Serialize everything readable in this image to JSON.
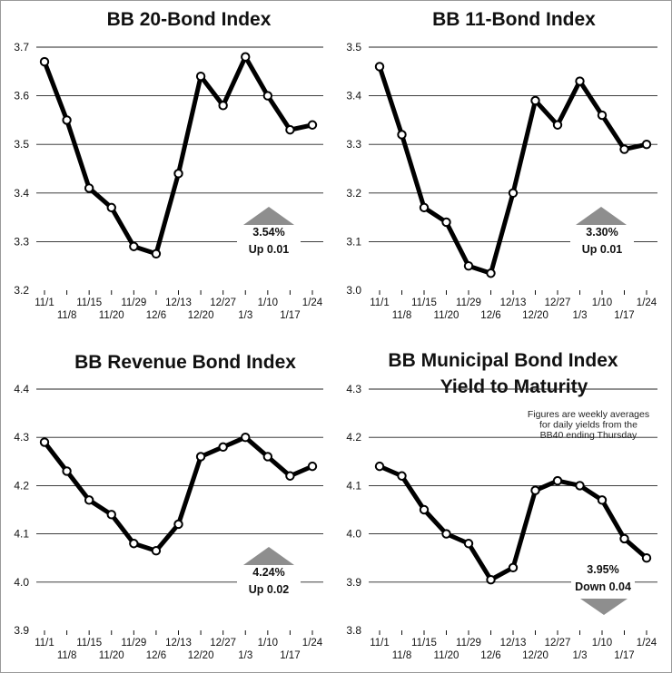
{
  "chart_data": [
    {
      "id": "bb20",
      "type": "line",
      "title": "BB 20-Bond Index",
      "title2": "",
      "ylim": [
        3.2,
        3.7
      ],
      "yticks": [
        "3.7",
        "3.6",
        "3.5",
        "3.4",
        "3.3",
        "3.2"
      ],
      "categories": [
        "11/1",
        "11/8",
        "11/15",
        "11/20",
        "11/29",
        "12/6",
        "12/13",
        "12/20",
        "12/27",
        "1/3",
        "1/10",
        "1/17",
        "1/24"
      ],
      "values": [
        3.67,
        3.55,
        3.41,
        3.37,
        3.29,
        3.275,
        3.44,
        3.64,
        3.58,
        3.68,
        3.6,
        3.53,
        3.54
      ],
      "callout": {
        "value": "3.54%",
        "change": "Up 0.01",
        "direction": "up"
      },
      "note": []
    },
    {
      "id": "bb11",
      "type": "line",
      "title": "BB 11-Bond Index",
      "title2": "",
      "ylim": [
        3.0,
        3.5
      ],
      "yticks": [
        "3.5",
        "3.4",
        "3.3",
        "3.2",
        "3.1",
        "3.0"
      ],
      "categories": [
        "11/1",
        "11/8",
        "11/15",
        "11/20",
        "11/29",
        "12/6",
        "12/13",
        "12/20",
        "12/27",
        "1/3",
        "1/10",
        "1/17",
        "1/24"
      ],
      "values": [
        3.46,
        3.32,
        3.17,
        3.14,
        3.05,
        3.035,
        3.2,
        3.39,
        3.34,
        3.43,
        3.36,
        3.29,
        3.3
      ],
      "callout": {
        "value": "3.30%",
        "change": "Up 0.01",
        "direction": "up"
      },
      "note": []
    },
    {
      "id": "rev",
      "type": "line",
      "title": "BB Revenue Bond Index",
      "title2": "",
      "ylim": [
        3.9,
        4.4
      ],
      "yticks": [
        "4.4",
        "4.3",
        "4.2",
        "4.1",
        "4.0",
        "3.9"
      ],
      "categories": [
        "11/1",
        "11/8",
        "11/15",
        "11/20",
        "11/29",
        "12/6",
        "12/13",
        "12/20",
        "12/27",
        "1/3",
        "1/10",
        "1/17",
        "1/24"
      ],
      "values": [
        4.29,
        4.23,
        4.17,
        4.14,
        4.08,
        4.065,
        4.12,
        4.26,
        4.28,
        4.3,
        4.26,
        4.22,
        4.24
      ],
      "callout": {
        "value": "4.24%",
        "change": "Up 0.02",
        "direction": "up"
      },
      "note": []
    },
    {
      "id": "muni",
      "type": "line",
      "title": "BB Municipal Bond Index",
      "title2": "Yield to Maturity",
      "ylim": [
        3.8,
        4.3
      ],
      "yticks": [
        "4.3",
        "4.2",
        "4.1",
        "4.0",
        "3.9",
        "3.8"
      ],
      "categories": [
        "11/1",
        "11/8",
        "11/15",
        "11/20",
        "11/29",
        "12/6",
        "12/13",
        "12/20",
        "12/27",
        "1/3",
        "1/10",
        "1/17",
        "1/24"
      ],
      "values": [
        4.14,
        4.12,
        4.05,
        4.0,
        3.98,
        3.905,
        3.93,
        4.09,
        4.11,
        4.1,
        4.07,
        3.99,
        3.95
      ],
      "callout": {
        "value": "3.95%",
        "change": "Down 0.04",
        "direction": "down"
      },
      "note": [
        "Figures are weekly averages",
        "for daily yields from the",
        "BB40 ending Thursday"
      ]
    }
  ]
}
